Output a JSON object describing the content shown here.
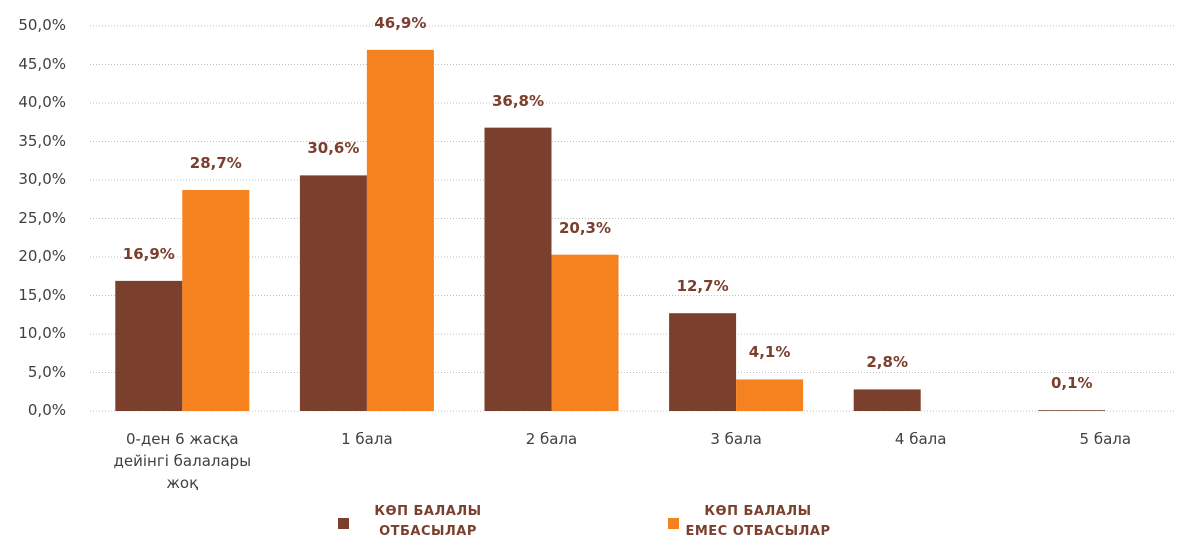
{
  "chart_data": {
    "type": "bar",
    "categories": [
      "0-ден 6 жасқа дейінгі балалары жоқ",
      "1 бала",
      "2 бала",
      "3 бала",
      "4 бала",
      "5 бала"
    ],
    "series": [
      {
        "name": "КӨП БАЛАЛЫ ОТБАСЫЛАР",
        "color": "#7b3f2e",
        "values": [
          16.9,
          30.6,
          36.8,
          12.7,
          2.8,
          0.1
        ],
        "value_labels": [
          "16,9%",
          "30,6%",
          "36,8%",
          "12,7%",
          "2,8%",
          "0,1%"
        ]
      },
      {
        "name": "КӨП БАЛАЛЫ ЕМЕС ОТБАСЫЛАР",
        "color": "#f5821f",
        "values": [
          28.7,
          46.9,
          20.3,
          4.1,
          null,
          null
        ],
        "value_labels": [
          "28,7%",
          "46,9%",
          "20,3%",
          "4,1%",
          null,
          null
        ]
      }
    ],
    "ylim": [
      0,
      50
    ],
    "yticks": [
      {
        "value": 0,
        "label": "0,0%"
      },
      {
        "value": 5,
        "label": "5,0%"
      },
      {
        "value": 10,
        "label": "10,0%"
      },
      {
        "value": 15,
        "label": "15,0%"
      },
      {
        "value": 20,
        "label": "20,0%"
      },
      {
        "value": 25,
        "label": "25,0%"
      },
      {
        "value": 30,
        "label": "30,0%"
      },
      {
        "value": 35,
        "label": "35,0%"
      },
      {
        "value": 40,
        "label": "40,0%"
      },
      {
        "value": 45,
        "label": "45,0%"
      },
      {
        "value": 50,
        "label": "50,0%"
      }
    ],
    "grid": true,
    "legend": "bottom"
  }
}
